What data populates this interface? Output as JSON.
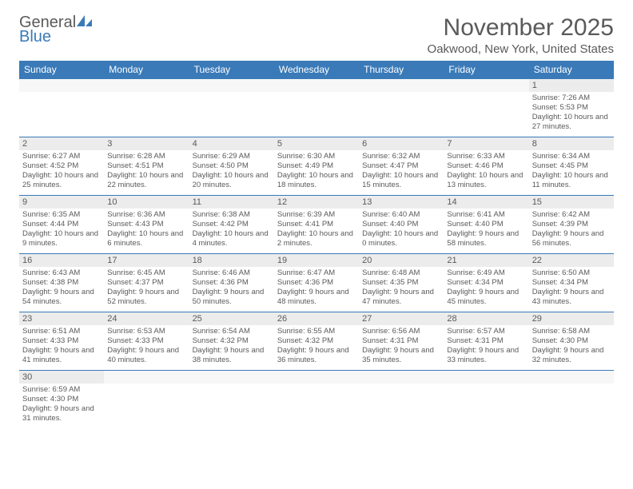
{
  "logo": {
    "text1": "General",
    "text2": "Blue",
    "logo_color": "#3a7ab8",
    "text_color": "#5a5a5a"
  },
  "header": {
    "month_title": "November 2025",
    "location": "Oakwood, New York, United States"
  },
  "colors": {
    "header_bg": "#3a7ab8",
    "header_text": "#ffffff",
    "daynum_bg": "#ececec",
    "text": "#5a5a5a",
    "border": "#3a7ab8"
  },
  "day_labels": [
    "Sunday",
    "Monday",
    "Tuesday",
    "Wednesday",
    "Thursday",
    "Friday",
    "Saturday"
  ],
  "weeks": [
    [
      {
        "num": "",
        "sunrise": "",
        "sunset": "",
        "daylight": ""
      },
      {
        "num": "",
        "sunrise": "",
        "sunset": "",
        "daylight": ""
      },
      {
        "num": "",
        "sunrise": "",
        "sunset": "",
        "daylight": ""
      },
      {
        "num": "",
        "sunrise": "",
        "sunset": "",
        "daylight": ""
      },
      {
        "num": "",
        "sunrise": "",
        "sunset": "",
        "daylight": ""
      },
      {
        "num": "",
        "sunrise": "",
        "sunset": "",
        "daylight": ""
      },
      {
        "num": "1",
        "sunrise": "Sunrise: 7:26 AM",
        "sunset": "Sunset: 5:53 PM",
        "daylight": "Daylight: 10 hours and 27 minutes."
      }
    ],
    [
      {
        "num": "2",
        "sunrise": "Sunrise: 6:27 AM",
        "sunset": "Sunset: 4:52 PM",
        "daylight": "Daylight: 10 hours and 25 minutes."
      },
      {
        "num": "3",
        "sunrise": "Sunrise: 6:28 AM",
        "sunset": "Sunset: 4:51 PM",
        "daylight": "Daylight: 10 hours and 22 minutes."
      },
      {
        "num": "4",
        "sunrise": "Sunrise: 6:29 AM",
        "sunset": "Sunset: 4:50 PM",
        "daylight": "Daylight: 10 hours and 20 minutes."
      },
      {
        "num": "5",
        "sunrise": "Sunrise: 6:30 AM",
        "sunset": "Sunset: 4:49 PM",
        "daylight": "Daylight: 10 hours and 18 minutes."
      },
      {
        "num": "6",
        "sunrise": "Sunrise: 6:32 AM",
        "sunset": "Sunset: 4:47 PM",
        "daylight": "Daylight: 10 hours and 15 minutes."
      },
      {
        "num": "7",
        "sunrise": "Sunrise: 6:33 AM",
        "sunset": "Sunset: 4:46 PM",
        "daylight": "Daylight: 10 hours and 13 minutes."
      },
      {
        "num": "8",
        "sunrise": "Sunrise: 6:34 AM",
        "sunset": "Sunset: 4:45 PM",
        "daylight": "Daylight: 10 hours and 11 minutes."
      }
    ],
    [
      {
        "num": "9",
        "sunrise": "Sunrise: 6:35 AM",
        "sunset": "Sunset: 4:44 PM",
        "daylight": "Daylight: 10 hours and 9 minutes."
      },
      {
        "num": "10",
        "sunrise": "Sunrise: 6:36 AM",
        "sunset": "Sunset: 4:43 PM",
        "daylight": "Daylight: 10 hours and 6 minutes."
      },
      {
        "num": "11",
        "sunrise": "Sunrise: 6:38 AM",
        "sunset": "Sunset: 4:42 PM",
        "daylight": "Daylight: 10 hours and 4 minutes."
      },
      {
        "num": "12",
        "sunrise": "Sunrise: 6:39 AM",
        "sunset": "Sunset: 4:41 PM",
        "daylight": "Daylight: 10 hours and 2 minutes."
      },
      {
        "num": "13",
        "sunrise": "Sunrise: 6:40 AM",
        "sunset": "Sunset: 4:40 PM",
        "daylight": "Daylight: 10 hours and 0 minutes."
      },
      {
        "num": "14",
        "sunrise": "Sunrise: 6:41 AM",
        "sunset": "Sunset: 4:40 PM",
        "daylight": "Daylight: 9 hours and 58 minutes."
      },
      {
        "num": "15",
        "sunrise": "Sunrise: 6:42 AM",
        "sunset": "Sunset: 4:39 PM",
        "daylight": "Daylight: 9 hours and 56 minutes."
      }
    ],
    [
      {
        "num": "16",
        "sunrise": "Sunrise: 6:43 AM",
        "sunset": "Sunset: 4:38 PM",
        "daylight": "Daylight: 9 hours and 54 minutes."
      },
      {
        "num": "17",
        "sunrise": "Sunrise: 6:45 AM",
        "sunset": "Sunset: 4:37 PM",
        "daylight": "Daylight: 9 hours and 52 minutes."
      },
      {
        "num": "18",
        "sunrise": "Sunrise: 6:46 AM",
        "sunset": "Sunset: 4:36 PM",
        "daylight": "Daylight: 9 hours and 50 minutes."
      },
      {
        "num": "19",
        "sunrise": "Sunrise: 6:47 AM",
        "sunset": "Sunset: 4:36 PM",
        "daylight": "Daylight: 9 hours and 48 minutes."
      },
      {
        "num": "20",
        "sunrise": "Sunrise: 6:48 AM",
        "sunset": "Sunset: 4:35 PM",
        "daylight": "Daylight: 9 hours and 47 minutes."
      },
      {
        "num": "21",
        "sunrise": "Sunrise: 6:49 AM",
        "sunset": "Sunset: 4:34 PM",
        "daylight": "Daylight: 9 hours and 45 minutes."
      },
      {
        "num": "22",
        "sunrise": "Sunrise: 6:50 AM",
        "sunset": "Sunset: 4:34 PM",
        "daylight": "Daylight: 9 hours and 43 minutes."
      }
    ],
    [
      {
        "num": "23",
        "sunrise": "Sunrise: 6:51 AM",
        "sunset": "Sunset: 4:33 PM",
        "daylight": "Daylight: 9 hours and 41 minutes."
      },
      {
        "num": "24",
        "sunrise": "Sunrise: 6:53 AM",
        "sunset": "Sunset: 4:33 PM",
        "daylight": "Daylight: 9 hours and 40 minutes."
      },
      {
        "num": "25",
        "sunrise": "Sunrise: 6:54 AM",
        "sunset": "Sunset: 4:32 PM",
        "daylight": "Daylight: 9 hours and 38 minutes."
      },
      {
        "num": "26",
        "sunrise": "Sunrise: 6:55 AM",
        "sunset": "Sunset: 4:32 PM",
        "daylight": "Daylight: 9 hours and 36 minutes."
      },
      {
        "num": "27",
        "sunrise": "Sunrise: 6:56 AM",
        "sunset": "Sunset: 4:31 PM",
        "daylight": "Daylight: 9 hours and 35 minutes."
      },
      {
        "num": "28",
        "sunrise": "Sunrise: 6:57 AM",
        "sunset": "Sunset: 4:31 PM",
        "daylight": "Daylight: 9 hours and 33 minutes."
      },
      {
        "num": "29",
        "sunrise": "Sunrise: 6:58 AM",
        "sunset": "Sunset: 4:30 PM",
        "daylight": "Daylight: 9 hours and 32 minutes."
      }
    ],
    [
      {
        "num": "30",
        "sunrise": "Sunrise: 6:59 AM",
        "sunset": "Sunset: 4:30 PM",
        "daylight": "Daylight: 9 hours and 31 minutes."
      },
      {
        "num": "",
        "sunrise": "",
        "sunset": "",
        "daylight": ""
      },
      {
        "num": "",
        "sunrise": "",
        "sunset": "",
        "daylight": ""
      },
      {
        "num": "",
        "sunrise": "",
        "sunset": "",
        "daylight": ""
      },
      {
        "num": "",
        "sunrise": "",
        "sunset": "",
        "daylight": ""
      },
      {
        "num": "",
        "sunrise": "",
        "sunset": "",
        "daylight": ""
      },
      {
        "num": "",
        "sunrise": "",
        "sunset": "",
        "daylight": ""
      }
    ]
  ]
}
